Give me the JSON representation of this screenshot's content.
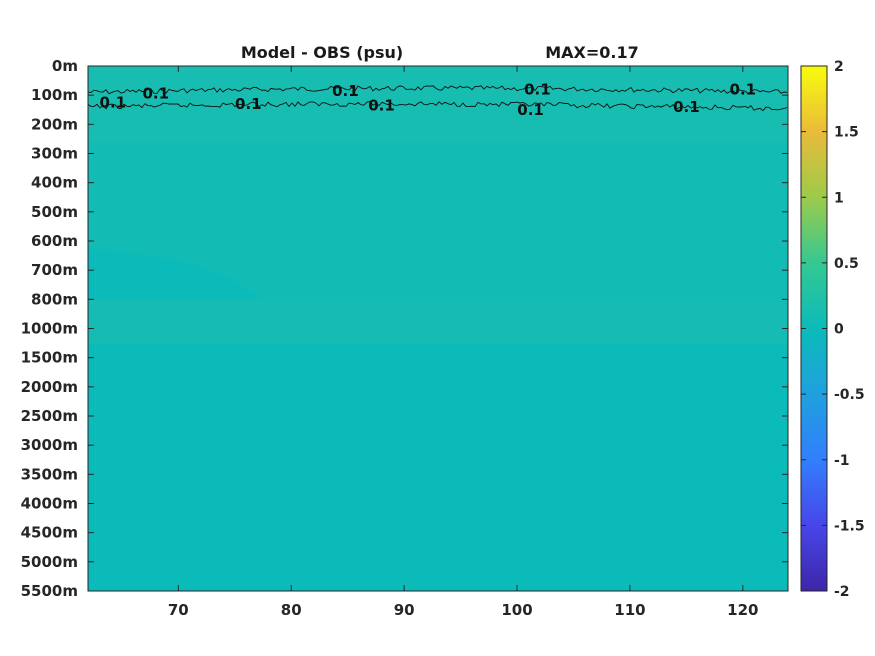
{
  "chart_data": {
    "type": "heatmap",
    "title": "Model - OBS (psu)",
    "max_label": "MAX=0.17",
    "xlabel": "",
    "ylabel": "",
    "x_ticks": [
      70,
      80,
      90,
      100,
      110,
      120
    ],
    "x_range": [
      62,
      124
    ],
    "depth_levels": [
      "0m",
      "100m",
      "200m",
      "300m",
      "400m",
      "500m",
      "600m",
      "700m",
      "800m",
      "1000m",
      "1500m",
      "2000m",
      "2500m",
      "3000m",
      "3500m",
      "4000m",
      "4500m",
      "5000m",
      "5500m"
    ],
    "colorbar": {
      "min": -2,
      "max": 2,
      "ticks": [
        2,
        1.5,
        1,
        0.5,
        0,
        -0.5,
        -1,
        -1.5,
        -2
      ],
      "colormap": "parula",
      "colors": [
        "#3e26a8",
        "#4746ea",
        "#327ffc",
        "#1fa0df",
        "#0bbbb9",
        "#35c892",
        "#9dca4a",
        "#eabb3a",
        "#f9fb0e"
      ]
    },
    "field": {
      "background_value": 0.0,
      "near_surface_value": 0.07,
      "upper_band_value": 0.1,
      "deep_value": 0.0
    },
    "contours": [
      {
        "level": 0.1,
        "depth_index": 0.9
      },
      {
        "level": 0.1,
        "depth_index": 1.4
      }
    ],
    "contour_labels": [
      {
        "text": "0.1",
        "x": 64.2,
        "depth_index": 1.25
      },
      {
        "text": "0.1",
        "x": 68.0,
        "depth_index": 0.95
      },
      {
        "text": "0.1",
        "x": 76.2,
        "depth_index": 1.3
      },
      {
        "text": "0.1",
        "x": 84.8,
        "depth_index": 0.85
      },
      {
        "text": "0.1",
        "x": 88.0,
        "depth_index": 1.35
      },
      {
        "text": "0.1",
        "x": 101.8,
        "depth_index": 0.8
      },
      {
        "text": "0.1",
        "x": 101.2,
        "depth_index": 1.5
      },
      {
        "text": "0.1",
        "x": 115.0,
        "depth_index": 1.4
      },
      {
        "text": "0.1",
        "x": 120.0,
        "depth_index": 0.8
      }
    ]
  }
}
